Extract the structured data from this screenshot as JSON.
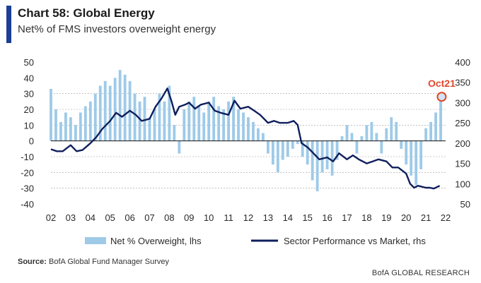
{
  "header": {
    "title": "Chart 58: Global Energy",
    "subtitle": "Net% of FMS investors overweight energy"
  },
  "footer": {
    "source_label": "Source:",
    "source_text": "BofA Global Fund Manager Survey",
    "brand": "BofA GLOBAL RESEARCH"
  },
  "colors": {
    "bars": "#9ecae8",
    "line": "#0f1f5c",
    "callout": "#e2482a",
    "accent": "#1b3f94",
    "grid": "#9a9a9a"
  },
  "chart_data": {
    "type": "bar+line",
    "x_ticks": [
      "02",
      "03",
      "04",
      "05",
      "06",
      "07",
      "08",
      "09",
      "10",
      "11",
      "12",
      "13",
      "14",
      "15",
      "16",
      "17",
      "18",
      "19",
      "20",
      "21",
      "22"
    ],
    "xlim": [
      2002,
      2022
    ],
    "y_left": {
      "ticks": [
        50,
        40,
        30,
        20,
        10,
        0,
        -10,
        -20,
        -30,
        -40
      ],
      "ylim": [
        -40,
        50
      ]
    },
    "y_right": {
      "ticks": [
        400,
        350,
        300,
        250,
        200,
        150,
        100,
        50
      ],
      "ylim": [
        50,
        400
      ]
    },
    "legend": [
      {
        "label": "Net % Overweight, lhs",
        "kind": "bar"
      },
      {
        "label": "Sector Performance vs Market, rhs",
        "kind": "line"
      }
    ],
    "annotation": {
      "label": "Oct21",
      "x": 2021.8,
      "y": 28
    },
    "series": [
      {
        "name": "Net % Overweight, lhs",
        "axis": "left",
        "type": "bar",
        "x": [
          2002.0,
          2002.25,
          2002.5,
          2002.75,
          2003.0,
          2003.25,
          2003.5,
          2003.75,
          2004.0,
          2004.25,
          2004.5,
          2004.75,
          2005.0,
          2005.25,
          2005.5,
          2005.75,
          2006.0,
          2006.25,
          2006.5,
          2006.75,
          2007.0,
          2007.25,
          2007.5,
          2007.75,
          2008.0,
          2008.25,
          2008.5,
          2008.75,
          2009.0,
          2009.25,
          2009.5,
          2009.75,
          2010.0,
          2010.25,
          2010.5,
          2010.75,
          2011.0,
          2011.25,
          2011.5,
          2011.75,
          2012.0,
          2012.25,
          2012.5,
          2012.75,
          2013.0,
          2013.25,
          2013.5,
          2013.75,
          2014.0,
          2014.25,
          2014.5,
          2014.75,
          2015.0,
          2015.25,
          2015.5,
          2015.75,
          2016.0,
          2016.25,
          2016.5,
          2016.75,
          2017.0,
          2017.25,
          2017.5,
          2017.75,
          2018.0,
          2018.25,
          2018.5,
          2018.75,
          2019.0,
          2019.25,
          2019.5,
          2019.75,
          2020.0,
          2020.25,
          2020.5,
          2020.75,
          2021.0,
          2021.25,
          2021.5,
          2021.75
        ],
        "values": [
          33,
          20,
          12,
          18,
          15,
          10,
          18,
          22,
          25,
          30,
          35,
          38,
          35,
          40,
          45,
          42,
          38,
          30,
          25,
          28,
          15,
          20,
          30,
          25,
          35,
          10,
          -8,
          20,
          25,
          28,
          22,
          18,
          25,
          28,
          22,
          20,
          25,
          28,
          20,
          18,
          15,
          12,
          8,
          5,
          -8,
          -15,
          -20,
          -12,
          -10,
          -5,
          -2,
          -10,
          -15,
          -25,
          -32,
          -20,
          -18,
          -22,
          -12,
          3,
          10,
          5,
          -8,
          3,
          10,
          12,
          5,
          -8,
          8,
          15,
          12,
          -5,
          -15,
          -22,
          -28,
          -18,
          8,
          12,
          18,
          28
        ]
      },
      {
        "name": "Sector Performance vs Market, rhs",
        "axis": "right",
        "type": "line",
        "x": [
          2002.0,
          2002.3,
          2002.6,
          2003.0,
          2003.3,
          2003.6,
          2004.0,
          2004.3,
          2004.6,
          2005.0,
          2005.3,
          2005.6,
          2006.0,
          2006.3,
          2006.6,
          2007.0,
          2007.3,
          2007.6,
          2007.9,
          2008.1,
          2008.3,
          2008.5,
          2008.8,
          2009.0,
          2009.3,
          2009.6,
          2010.0,
          2010.3,
          2010.6,
          2011.0,
          2011.3,
          2011.6,
          2012.0,
          2012.3,
          2012.6,
          2013.0,
          2013.3,
          2013.6,
          2014.0,
          2014.3,
          2014.5,
          2014.7,
          2015.0,
          2015.3,
          2015.6,
          2016.0,
          2016.3,
          2016.6,
          2017.0,
          2017.3,
          2017.6,
          2018.0,
          2018.3,
          2018.6,
          2019.0,
          2019.3,
          2019.6,
          2020.0,
          2020.2,
          2020.4,
          2020.6,
          2021.0,
          2021.2,
          2021.4,
          2021.7
        ],
        "values": [
          185,
          180,
          180,
          195,
          180,
          183,
          200,
          215,
          235,
          255,
          275,
          265,
          280,
          270,
          255,
          260,
          290,
          310,
          335,
          305,
          270,
          290,
          295,
          300,
          285,
          295,
          300,
          280,
          275,
          270,
          305,
          285,
          290,
          280,
          270,
          250,
          255,
          250,
          250,
          255,
          245,
          200,
          190,
          175,
          160,
          165,
          155,
          175,
          160,
          170,
          160,
          150,
          155,
          160,
          155,
          140,
          140,
          125,
          100,
          90,
          95,
          90,
          90,
          88,
          95
        ]
      }
    ]
  }
}
